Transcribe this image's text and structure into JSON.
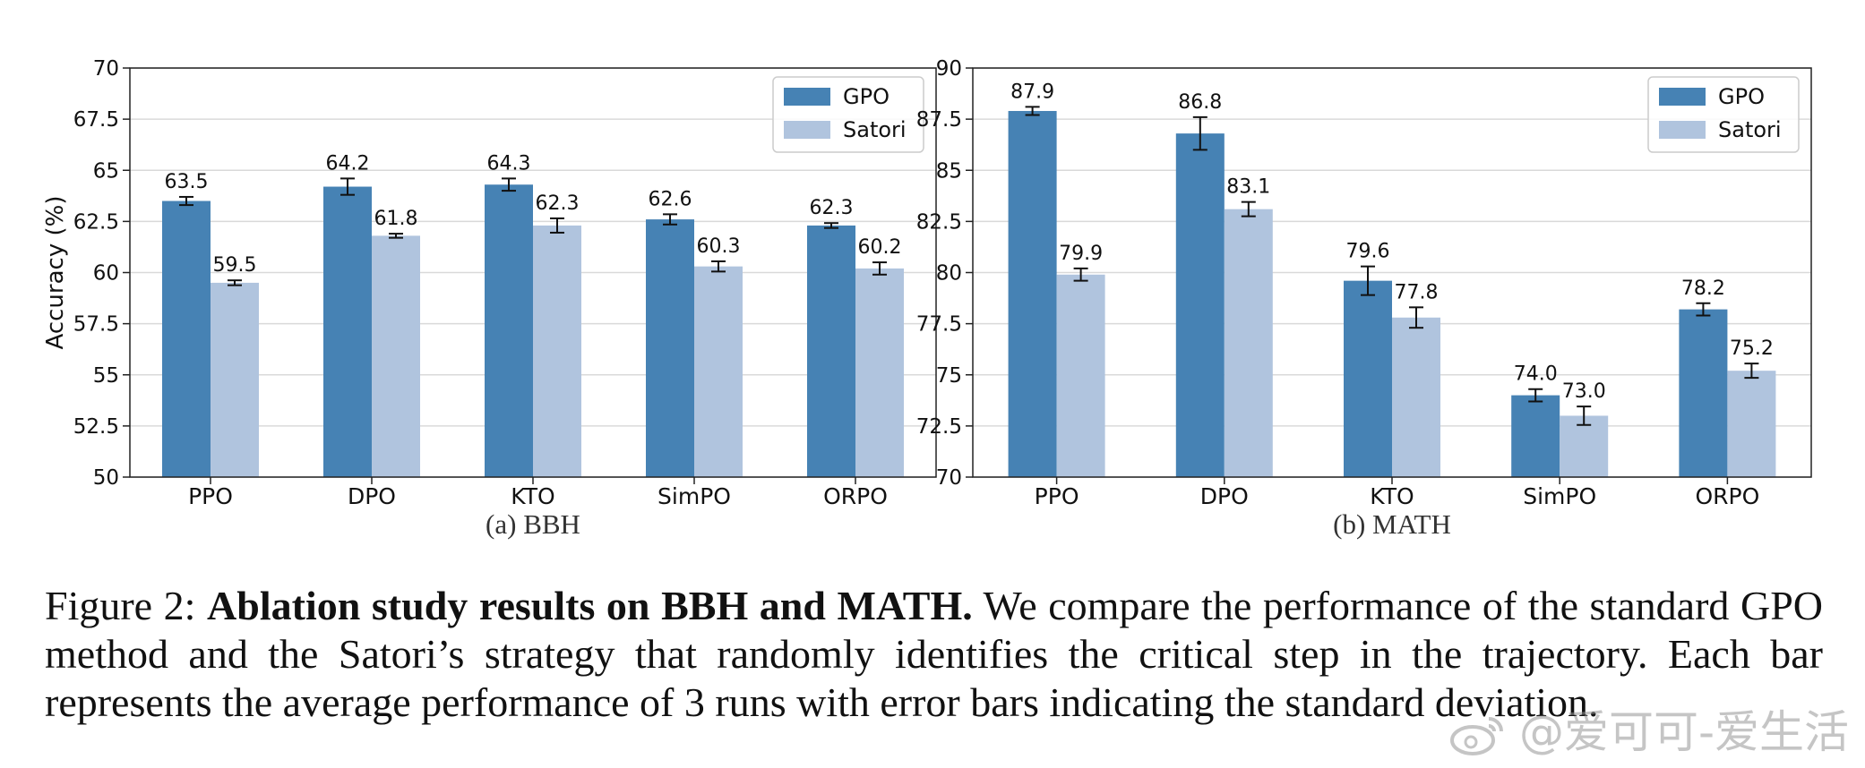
{
  "chart_data": [
    {
      "type": "bar",
      "subtitle": "(a) BBH",
      "ylabel": "Accuracy (%)",
      "categories": [
        "PPO",
        "DPO",
        "KTO",
        "SimPO",
        "ORPO"
      ],
      "ylim": [
        50,
        70
      ],
      "yticks": [
        50,
        52.5,
        55,
        57.5,
        60,
        62.5,
        65,
        67.5,
        70
      ],
      "ytick_labels": [
        "50",
        "52.5",
        "55",
        "57.5",
        "60",
        "62.5",
        "65",
        "67.5",
        "70"
      ],
      "grid": "horizontal",
      "legend": "top-right",
      "series": [
        {
          "name": "GPO",
          "color": "#4682b4",
          "values": [
            63.5,
            64.2,
            64.3,
            62.6,
            62.3
          ],
          "errors": [
            0.2,
            0.4,
            0.3,
            0.25,
            0.12
          ],
          "labels": [
            "63.5",
            "64.2",
            "64.3",
            "62.6",
            "62.3"
          ]
        },
        {
          "name": "Satori",
          "color": "#b0c4de",
          "values": [
            59.5,
            61.8,
            62.3,
            60.3,
            60.2
          ],
          "errors": [
            0.12,
            0.1,
            0.35,
            0.25,
            0.3
          ],
          "labels": [
            "59.5",
            "61.8",
            "62.3",
            "60.3",
            "60.2"
          ]
        }
      ]
    },
    {
      "type": "bar",
      "subtitle": "(b) MATH",
      "ylabel": "",
      "categories": [
        "PPO",
        "DPO",
        "KTO",
        "SimPO",
        "ORPO"
      ],
      "ylim": [
        70,
        90
      ],
      "yticks": [
        70,
        72.5,
        75,
        77.5,
        80,
        82.5,
        85,
        87.5,
        90
      ],
      "ytick_labels": [
        "70",
        "72.5",
        "75",
        "77.5",
        "80",
        "82.5",
        "85",
        "87.5",
        "90"
      ],
      "grid": "horizontal",
      "legend": "top-right",
      "series": [
        {
          "name": "GPO",
          "color": "#4682b4",
          "values": [
            87.9,
            86.8,
            79.6,
            74.0,
            78.2
          ],
          "errors": [
            0.2,
            0.8,
            0.7,
            0.3,
            0.3
          ],
          "labels": [
            "87.9",
            "86.8",
            "79.6",
            "74.0",
            "78.2"
          ]
        },
        {
          "name": "Satori",
          "color": "#b0c4de",
          "values": [
            79.9,
            83.1,
            77.8,
            73.0,
            75.2
          ],
          "errors": [
            0.3,
            0.35,
            0.5,
            0.45,
            0.35
          ],
          "labels": [
            "79.9",
            "83.1",
            "77.8",
            "73.0",
            "75.2"
          ]
        }
      ]
    }
  ],
  "caption": {
    "prefix": "Figure 2: ",
    "bold": "Ablation study results on BBH and MATH.",
    "text": " We compare the performance of the standard GPO method and the Satori’s strategy that randomly identifies the critical step in the trajectory. Each bar represents the average performance of 3 runs with error bars indicating the standard deviation."
  },
  "watermark": {
    "text": "@爱可可-爱生活",
    "icon": "weibo-icon"
  }
}
